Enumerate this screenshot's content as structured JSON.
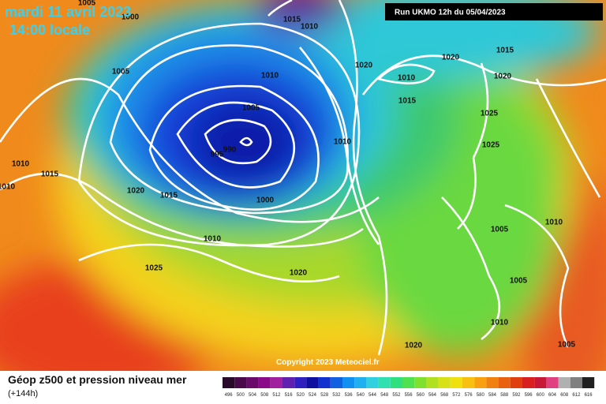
{
  "header": {
    "date": "mardi 11 avril 2023",
    "time": "14:00 locale",
    "run": "Run UKMO 12h du 05/04/2023"
  },
  "copyright": "Copyright 2023 Meteociel.fr",
  "footer": {
    "title": "Géop z500 et pression niveau mer",
    "lead": "(+144h)"
  },
  "colorbar": {
    "labels": [
      496,
      500,
      504,
      508,
      512,
      516,
      520,
      524,
      528,
      532,
      536,
      540,
      544,
      548,
      552,
      556,
      560,
      564,
      568,
      572,
      576,
      580,
      584,
      588,
      592,
      596,
      600,
      604,
      608,
      612,
      616
    ]
  },
  "isobar_labels": [
    "1005",
    "1000",
    "1015",
    "1010",
    "1005",
    "1010",
    "1020",
    "1010",
    "1020",
    "1015",
    "1020",
    "1015",
    "1005",
    "1025",
    "1010",
    "1025",
    "995",
    "990",
    "1010",
    "1015",
    "1010",
    "1020",
    "1015",
    "1000",
    "1010",
    "1005",
    "1010",
    "1025",
    "1020",
    "1005",
    "1010",
    "1020",
    "1005"
  ]
}
